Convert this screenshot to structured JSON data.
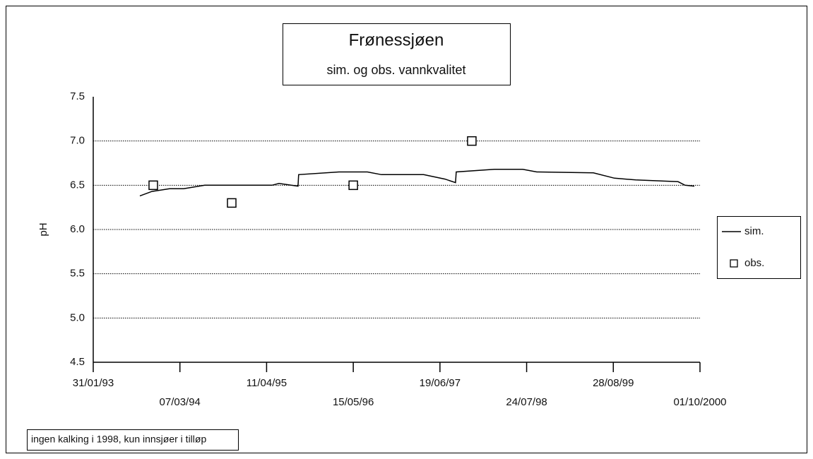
{
  "chart_data": {
    "type": "line",
    "title": "Frønessjøen",
    "subtitle": "sim. og obs. vannkvalitet",
    "ylabel": "pH",
    "annotation": "ingen kalking i 1998, kun innsjøer i tilløp",
    "ylim": [
      4.5,
      7.5
    ],
    "yticks": [
      {
        "value": 4.5,
        "label": "4.5"
      },
      {
        "value": 5.0,
        "label": "5.0"
      },
      5.5,
      {
        "value": 6.0,
        "label": "6.0"
      },
      6.5,
      {
        "value": 7.0,
        "label": "7.0"
      },
      7.5
    ],
    "xlim": [
      "1993-01-31",
      "2000-10-01"
    ],
    "xticks": [
      {
        "value": "1993-01-31",
        "label": "31/01/93"
      },
      {
        "value": "1994-03-07",
        "label": "07/03/94"
      },
      {
        "value": "1995-04-11",
        "label": "11/04/95"
      },
      {
        "value": "1996-05-15",
        "label": "15/05/96"
      },
      {
        "value": "1997-06-19",
        "label": "19/06/97"
      },
      {
        "value": "1998-07-24",
        "label": "24/07/98"
      },
      {
        "value": "1999-08-28",
        "label": "28/08/99"
      },
      {
        "value": "2000-10-01",
        "label": "01/10/2000"
      }
    ],
    "grid": true,
    "legend": "right",
    "series": [
      {
        "name": "sim.",
        "color": "#000000",
        "mode": "line",
        "x": [
          "1993-09-03",
          "1993-10-29",
          "1994-01-18",
          "1994-03-24",
          "1994-06-30",
          "1995-05-06",
          "1995-06-07",
          "1995-09-03",
          "1995-09-06",
          "1996-03-10",
          "1996-07-19",
          "1996-09-22",
          "1997-04-05",
          "1997-07-12",
          "1997-08-30",
          "1997-09-02",
          "1998-02-25",
          "1998-07-06",
          "1998-09-09",
          "1999-05-28",
          "1999-09-02",
          "1999-12-09",
          "2000-06-22",
          "2000-07-24",
          "2000-09-05"
        ],
        "values": [
          6.38,
          6.43,
          6.46,
          6.46,
          6.5,
          6.5,
          6.52,
          6.49,
          6.62,
          6.65,
          6.65,
          6.62,
          6.62,
          6.57,
          6.53,
          6.65,
          6.68,
          6.68,
          6.65,
          6.64,
          6.58,
          6.56,
          6.54,
          6.5,
          6.49
        ]
      },
      {
        "name": "obs.",
        "color": "#000000",
        "mode": "markers",
        "x": [
          "1993-11-04",
          "1994-11-01",
          "1996-05-15",
          "1997-11-13"
        ],
        "values": [
          6.5,
          6.3,
          6.5,
          7.0
        ]
      }
    ]
  }
}
